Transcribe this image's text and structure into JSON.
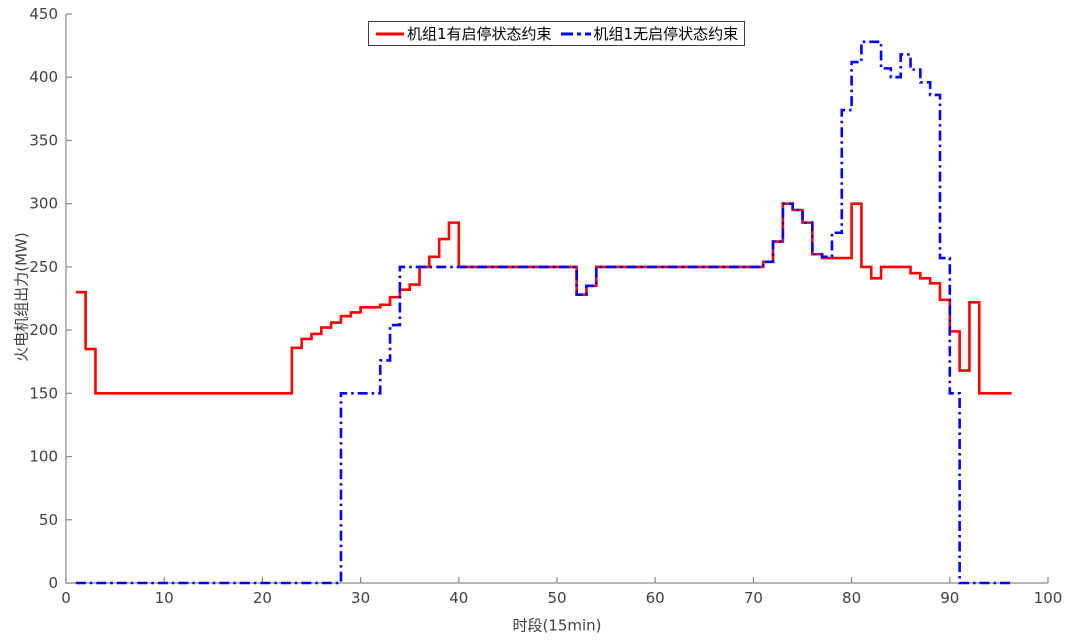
{
  "figure": {
    "background": "#ffffff",
    "axis_color": "#8a8a8a",
    "tick_label_color": "#3f3f46"
  },
  "chart_data": {
    "type": "line",
    "style": "stairs",
    "title": "",
    "xlabel": "时段(15min)",
    "ylabel": "火电机组出力(MW)",
    "xlim": [
      0,
      100
    ],
    "ylim": [
      0,
      450
    ],
    "xticks": [
      0,
      10,
      20,
      30,
      40,
      50,
      60,
      70,
      80,
      90,
      100
    ],
    "yticks": [
      0,
      50,
      100,
      150,
      200,
      250,
      300,
      350,
      400,
      450
    ],
    "grid": false,
    "legend_position": "top-center",
    "x_start": 1,
    "x_step": 1,
    "x_end": 96.3,
    "series": [
      {
        "name": "机组1有启停状态约束",
        "color": "#ff0000",
        "line_style": "solid",
        "values": [
          230,
          185,
          150,
          150,
          150,
          150,
          150,
          150,
          150,
          150,
          150,
          150,
          150,
          150,
          150,
          150,
          150,
          150,
          150,
          150,
          150,
          150,
          186,
          193,
          197,
          202,
          206,
          211,
          214,
          218,
          218,
          220,
          226,
          232,
          236,
          250,
          258,
          272,
          285,
          250,
          250,
          250,
          250,
          250,
          250,
          250,
          250,
          250,
          250,
          250,
          250,
          228,
          235,
          250,
          250,
          250,
          250,
          250,
          250,
          250,
          250,
          250,
          250,
          250,
          250,
          250,
          250,
          250,
          250,
          250,
          254,
          270,
          300,
          295,
          285,
          260,
          257,
          257,
          257,
          300,
          250,
          241,
          250,
          250,
          250,
          245,
          241,
          237,
          224,
          199,
          168,
          222,
          150,
          150,
          150,
          150
        ]
      },
      {
        "name": "机组1无启停状态约束",
        "color": "#0000ff",
        "line_style": "dash-dot",
        "values": [
          0,
          0,
          0,
          0,
          0,
          0,
          0,
          0,
          0,
          0,
          0,
          0,
          0,
          0,
          0,
          0,
          0,
          0,
          0,
          0,
          0,
          0,
          0,
          0,
          0,
          0,
          0,
          150,
          150,
          150,
          150,
          176,
          204,
          250,
          250,
          250,
          250,
          250,
          250,
          250,
          250,
          250,
          250,
          250,
          250,
          250,
          250,
          250,
          250,
          250,
          250,
          228,
          235,
          250,
          250,
          250,
          250,
          250,
          250,
          250,
          250,
          250,
          250,
          250,
          250,
          250,
          250,
          250,
          250,
          250,
          254,
          270,
          300,
          295,
          285,
          260,
          258,
          277,
          374,
          412,
          428,
          428,
          407,
          400,
          418,
          406,
          396,
          386,
          257,
          150,
          0,
          0,
          0,
          0,
          0,
          0
        ]
      }
    ]
  }
}
